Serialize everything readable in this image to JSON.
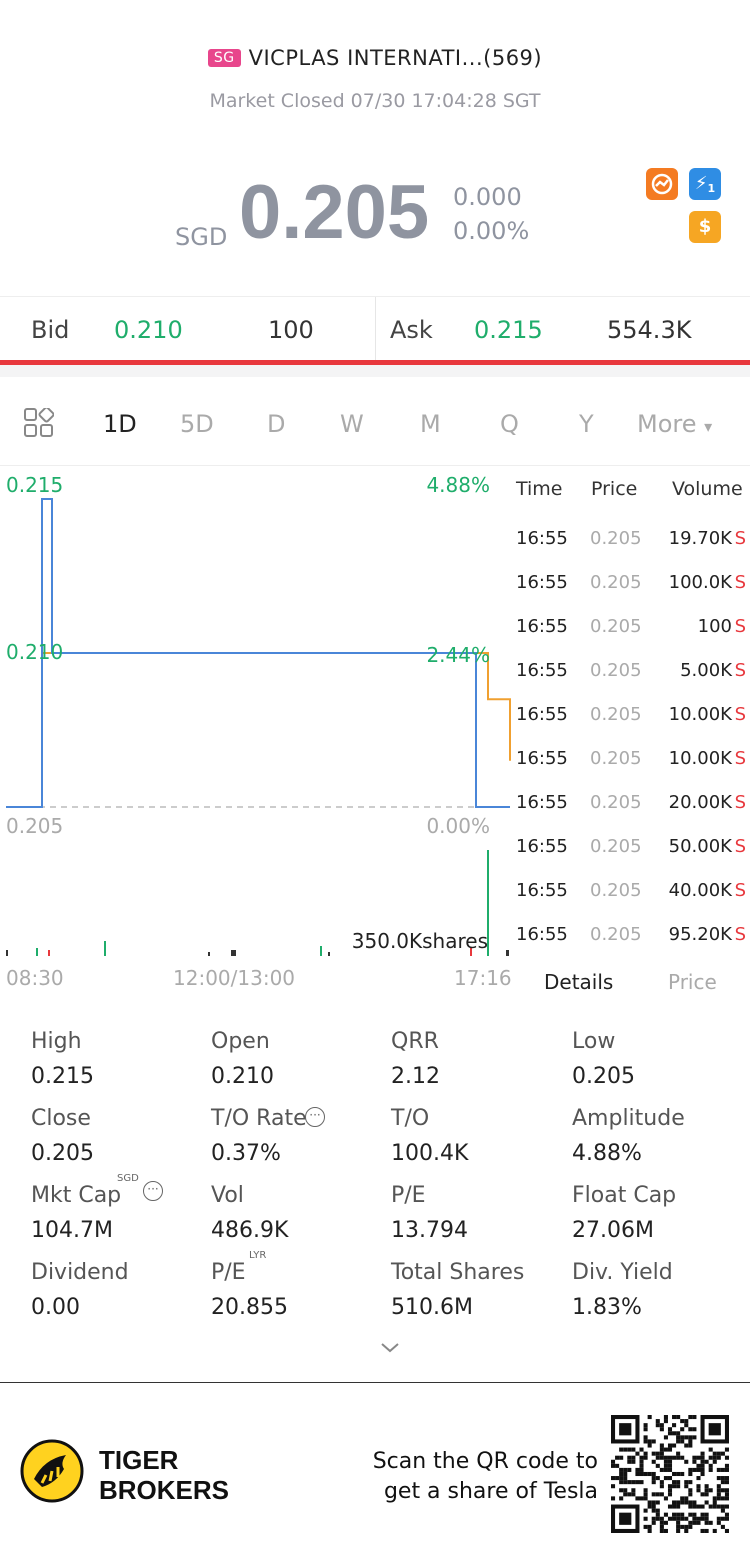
{
  "header": {
    "market_badge": "SG",
    "title": "VICPLAS INTERNATI...(569)",
    "status": "Market Closed 07/30 17:04:28 SGT",
    "currency": "SGD",
    "price": "0.205",
    "change": "0.000",
    "change_pct": "0.00%",
    "icons": [
      "chart-swap-icon",
      "lightning-level1-icon",
      "dollar-icon"
    ],
    "icon_glyphs": {
      "blue": "⚡",
      "blue_sub": "1",
      "gold": "$"
    }
  },
  "bidask": {
    "bid_label": "Bid",
    "bid_price": "0.210",
    "bid_size": "100",
    "ask_label": "Ask",
    "ask_price": "0.215",
    "ask_size": "554.3K"
  },
  "tabs": [
    "1D",
    "5D",
    "D",
    "W",
    "M",
    "Q",
    "Y",
    "More"
  ],
  "active_tab": "1D",
  "chart": {
    "price_labels": {
      "high": "0.215",
      "mid": "0.210",
      "base": "0.205"
    },
    "pct_labels": {
      "high": "4.88%",
      "mid": "2.44%",
      "base": "0.00%"
    },
    "volume_label": "350.0Kshares",
    "time_labels": {
      "start": "08:30",
      "mid": "12:00/13:00",
      "end": "17:16"
    },
    "colors": {
      "price": "#4a86d8",
      "avg": "#f0a030",
      "green": "#1fad6b"
    }
  },
  "chart_data": {
    "type": "line",
    "ylim": [
      0.205,
      0.215
    ],
    "series": [
      {
        "values": [
          0.205,
          0.205,
          0.215,
          0.215,
          0.21,
          0.21,
          0.21,
          0.205,
          0.205
        ]
      },
      {
        "values": [
          0.21,
          0.21,
          0.21,
          0.2085,
          0.2065
        ]
      }
    ]
  },
  "trades": {
    "headers": {
      "time": "Time",
      "price": "Price",
      "volume": "Volume"
    },
    "rows": [
      {
        "time": "16:55",
        "price": "0.205",
        "volume": "19.70K",
        "side": "S"
      },
      {
        "time": "16:55",
        "price": "0.205",
        "volume": "100.0K",
        "side": "S"
      },
      {
        "time": "16:55",
        "price": "0.205",
        "volume": "100",
        "side": "S"
      },
      {
        "time": "16:55",
        "price": "0.205",
        "volume": "5.00K",
        "side": "S"
      },
      {
        "time": "16:55",
        "price": "0.205",
        "volume": "10.00K",
        "side": "S"
      },
      {
        "time": "16:55",
        "price": "0.205",
        "volume": "10.00K",
        "side": "S"
      },
      {
        "time": "16:55",
        "price": "0.205",
        "volume": "20.00K",
        "side": "S"
      },
      {
        "time": "16:55",
        "price": "0.205",
        "volume": "50.00K",
        "side": "S"
      },
      {
        "time": "16:55",
        "price": "0.205",
        "volume": "40.00K",
        "side": "S"
      },
      {
        "time": "16:55",
        "price": "0.205",
        "volume": "95.20K",
        "side": "S"
      }
    ],
    "tab_details": "Details",
    "tab_price": "Price"
  },
  "stats": {
    "high": {
      "label": "High",
      "value": "0.215"
    },
    "open": {
      "label": "Open",
      "value": "0.210"
    },
    "qrr": {
      "label": "QRR",
      "value": "2.12"
    },
    "low": {
      "label": "Low",
      "value": "0.205"
    },
    "close": {
      "label": "Close",
      "value": "0.205"
    },
    "to_rate": {
      "label": "T/O Rate",
      "value": "0.37%"
    },
    "to": {
      "label": "T/O",
      "value": "100.4K"
    },
    "amplitude": {
      "label": "Amplitude",
      "value": "4.88%"
    },
    "mkt_cap": {
      "label": "Mkt Cap",
      "sup": "SGD",
      "value": "104.7M"
    },
    "vol": {
      "label": "Vol",
      "value": "486.9K"
    },
    "pe": {
      "label": "P/E",
      "value": "13.794"
    },
    "float_cap": {
      "label": "Float Cap",
      "value": "27.06M"
    },
    "dividend": {
      "label": "Dividend",
      "value": "0.00"
    },
    "pe_lyr": {
      "label": "P/E",
      "sup": "LYR",
      "value": "20.855"
    },
    "total_shares": {
      "label": "Total Shares",
      "value": "510.6M"
    },
    "div_yield": {
      "label": "Div. Yield",
      "value": "1.83%"
    }
  },
  "footer": {
    "brand_line1": "TIGER",
    "brand_line2": "BROKERS",
    "promo_line1": "Scan the QR code to",
    "promo_line2": "get a share of Tesla"
  }
}
